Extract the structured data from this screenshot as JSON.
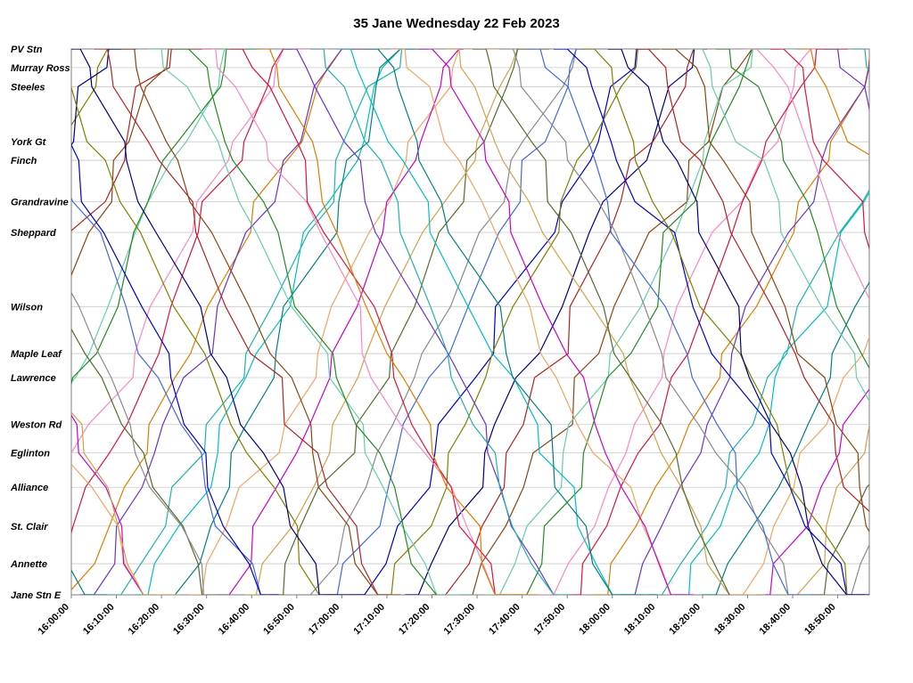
{
  "chart_data": {
    "type": "line",
    "variant": "marey-string-diagram",
    "title": "35 Jane Wednesday 22 Feb 2023",
    "xlabel": "",
    "ylabel": "",
    "grid": "horizontal-station-lines",
    "legend": "none",
    "x_axis": {
      "start_label": "16:00:00",
      "end_minutes": 177,
      "tick_interval_minutes": 10,
      "tick_labels": [
        "16:00:00",
        "16:10:00",
        "16:20:00",
        "16:30:00",
        "16:40:00",
        "16:50:00",
        "17:00:00",
        "17:10:00",
        "17:20:00",
        "17:30:00",
        "17:40:00",
        "17:50:00",
        "18:00:00",
        "18:10:00",
        "18:20:00",
        "18:30:00",
        "18:40:00",
        "18:50:00"
      ]
    },
    "stations": [
      {
        "name": "PV Stn",
        "pos": 1.0
      },
      {
        "name": "Murray Ross",
        "pos": 0.966
      },
      {
        "name": "Steeles",
        "pos": 0.931
      },
      {
        "name": "York Gt",
        "pos": 0.83
      },
      {
        "name": "Finch",
        "pos": 0.796
      },
      {
        "name": "Grandravine",
        "pos": 0.72
      },
      {
        "name": "Sheppard",
        "pos": 0.664
      },
      {
        "name": "Wilson",
        "pos": 0.528
      },
      {
        "name": "Maple Leaf",
        "pos": 0.442
      },
      {
        "name": "Lawrence",
        "pos": 0.398
      },
      {
        "name": "Weston Rd",
        "pos": 0.312
      },
      {
        "name": "Eglinton",
        "pos": 0.26
      },
      {
        "name": "Alliance",
        "pos": 0.197
      },
      {
        "name": "St. Clair",
        "pos": 0.126
      },
      {
        "name": "Annette",
        "pos": 0.057
      },
      {
        "name": "Jane Stn E",
        "pos": 0.0
      }
    ],
    "palette": [
      "#0000cd",
      "#b22222",
      "#228b22",
      "#e07b00",
      "#00bfbf",
      "#cc00cc",
      "#8a8a8a",
      "#808000",
      "#8b4513",
      "#ff85c2",
      "#6a33cc",
      "#008080",
      "#d2a24c",
      "#4169e1",
      "#000080",
      "#66cdaa",
      "#dc143c",
      "#20b2aa",
      "#f4a460",
      "#556b2f"
    ],
    "runs_format": [
      "start_min_after_16:00",
      "one_way_duration_min",
      "direction 1=northbound_to_PV 0=southbound_to_Jane",
      "palette_index",
      "terminal_layover_min"
    ],
    "runs_up": [
      [
        -55,
        50,
        1,
        0,
        0
      ],
      [
        -49,
        57,
        1,
        7,
        3
      ],
      [
        -43,
        51,
        1,
        14,
        6
      ],
      [
        -37,
        58,
        1,
        1,
        9
      ],
      [
        -31,
        52,
        1,
        8,
        1
      ],
      [
        -25,
        59,
        1,
        15,
        4
      ],
      [
        -19,
        53,
        1,
        2,
        7
      ],
      [
        -13,
        60,
        1,
        9,
        10
      ],
      [
        -7,
        54,
        1,
        16,
        2
      ],
      [
        -1,
        61,
        1,
        3,
        5
      ],
      [
        5,
        55,
        1,
        10,
        8
      ],
      [
        11,
        62,
        1,
        17,
        0
      ],
      [
        17,
        56,
        1,
        4,
        3
      ],
      [
        23,
        50,
        1,
        11,
        6
      ],
      [
        29,
        57,
        1,
        18,
        9
      ],
      [
        35,
        51,
        1,
        5,
        1
      ],
      [
        41,
        58,
        1,
        12,
        4
      ],
      [
        47,
        52,
        1,
        19,
        7
      ],
      [
        53,
        59,
        1,
        6,
        10
      ],
      [
        59,
        53,
        1,
        13,
        2
      ],
      [
        65,
        60,
        1,
        0,
        5
      ],
      [
        71,
        54,
        1,
        7,
        8
      ],
      [
        77,
        61,
        1,
        14,
        0
      ],
      [
        83,
        55,
        1,
        1,
        3
      ],
      [
        89,
        62,
        1,
        8,
        6
      ],
      [
        95,
        56,
        1,
        15,
        9
      ],
      [
        101,
        50,
        1,
        2,
        1
      ],
      [
        107,
        57,
        1,
        9,
        4
      ],
      [
        113,
        51,
        1,
        16,
        7
      ],
      [
        119,
        58,
        1,
        3,
        10
      ],
      [
        125,
        52,
        1,
        10,
        2
      ],
      [
        131,
        59,
        1,
        17,
        5
      ],
      [
        137,
        53,
        1,
        4,
        8
      ],
      [
        143,
        60,
        1,
        11,
        0
      ],
      [
        149,
        54,
        1,
        18,
        3
      ],
      [
        155,
        61,
        1,
        5,
        6
      ],
      [
        161,
        55,
        1,
        12,
        9
      ],
      [
        167,
        62,
        1,
        19,
        1
      ],
      [
        173,
        56,
        1,
        6,
        4
      ]
    ],
    "runs_down": [
      [
        -52,
        55,
        0,
        11,
        5
      ],
      [
        -46,
        62,
        0,
        18,
        8
      ],
      [
        -40,
        56,
        0,
        5,
        0
      ],
      [
        -34,
        50,
        0,
        12,
        3
      ],
      [
        -28,
        57,
        0,
        19,
        6
      ],
      [
        -22,
        51,
        0,
        6,
        9
      ],
      [
        -16,
        58,
        0,
        13,
        1
      ],
      [
        -10,
        52,
        0,
        0,
        4
      ],
      [
        -4,
        59,
        0,
        7,
        7
      ],
      [
        2,
        53,
        0,
        14,
        10
      ],
      [
        8,
        60,
        0,
        1,
        2
      ],
      [
        14,
        54,
        0,
        8,
        5
      ],
      [
        20,
        61,
        0,
        15,
        8
      ],
      [
        26,
        55,
        0,
        2,
        0
      ],
      [
        32,
        62,
        0,
        9,
        3
      ],
      [
        38,
        56,
        0,
        16,
        6
      ],
      [
        44,
        50,
        0,
        3,
        9
      ],
      [
        50,
        57,
        0,
        10,
        1
      ],
      [
        56,
        51,
        0,
        17,
        4
      ],
      [
        62,
        58,
        0,
        4,
        7
      ],
      [
        68,
        52,
        0,
        11,
        10
      ],
      [
        74,
        59,
        0,
        18,
        2
      ],
      [
        80,
        53,
        0,
        5,
        5
      ],
      [
        86,
        60,
        0,
        12,
        8
      ],
      [
        92,
        54,
        0,
        19,
        0
      ],
      [
        98,
        61,
        0,
        6,
        3
      ],
      [
        104,
        55,
        0,
        13,
        6
      ],
      [
        110,
        62,
        0,
        0,
        9
      ],
      [
        116,
        56,
        0,
        7,
        1
      ],
      [
        122,
        50,
        0,
        14,
        4
      ],
      [
        128,
        57,
        0,
        1,
        7
      ],
      [
        134,
        51,
        0,
        8,
        10
      ],
      [
        140,
        58,
        0,
        15,
        2
      ],
      [
        146,
        52,
        0,
        2,
        5
      ],
      [
        152,
        59,
        0,
        9,
        8
      ],
      [
        158,
        53,
        0,
        16,
        0
      ],
      [
        164,
        60,
        0,
        3,
        3
      ],
      [
        170,
        54,
        0,
        10,
        6
      ],
      [
        176,
        61,
        0,
        17,
        9
      ]
    ]
  },
  "layout_colors": {
    "grid": "#c9c9c9",
    "frame": "#7f7f7f",
    "background": "#ffffff",
    "text": "#000000"
  }
}
